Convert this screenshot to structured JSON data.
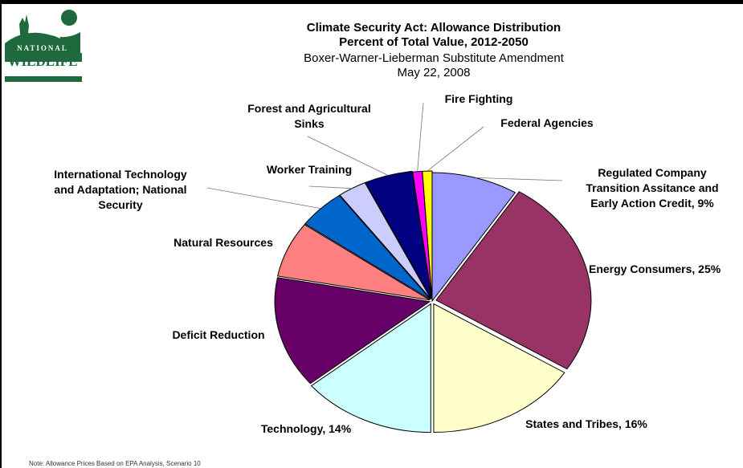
{
  "header": {
    "title_line1": "Climate Security Act:  Allowance Distribution",
    "title_line2": "Percent of Total Value, 2012-2050",
    "subtitle_line1": "Boxer-Warner-Lieberman Substitute Amendment",
    "subtitle_line2": "May 22, 2008"
  },
  "logo": {
    "line1": "NATIONAL",
    "line2": "WILDLIFE",
    "line3": "FEDERATION."
  },
  "note": "Note:  Allowance Prices Based on EPA Analysis,  Scenario 10",
  "colors": {
    "regulated": "#9999ff",
    "energy": "#993366",
    "states": "#ffffcc",
    "technology": "#ccffff",
    "deficit": "#660066",
    "natural": "#ff8080",
    "international": "#0066cc",
    "worker": "#ccccff",
    "forest": "#000080",
    "fire": "#ff00ff",
    "federal": "#ffff00"
  },
  "chart_data": {
    "type": "pie",
    "slices": [
      {
        "label_lines": [
          "Regulated Company",
          "Transition Assitance and",
          "Early Action Credit, 9%"
        ],
        "value": 9,
        "color_key": "regulated"
      },
      {
        "label_lines": [
          "Energy Consumers, 25%"
        ],
        "value": 25,
        "color_key": "energy"
      },
      {
        "label_lines": [
          "States and Tribes, 16%"
        ],
        "value": 16,
        "color_key": "states"
      },
      {
        "label_lines": [
          "Technology, 14%"
        ],
        "value": 14,
        "color_key": "technology"
      },
      {
        "label_lines": [
          "Deficit Reduction"
        ],
        "value": 14,
        "color_key": "deficit"
      },
      {
        "label_lines": [
          "Natural Resources"
        ],
        "value": 7,
        "color_key": "natural"
      },
      {
        "label_lines": [
          "International Technology",
          "and Adaptation; National",
          "Security"
        ],
        "value": 5,
        "color_key": "international"
      },
      {
        "label_lines": [
          "Worker Training"
        ],
        "value": 3,
        "color_key": "worker"
      },
      {
        "label_lines": [
          "Forest and Agricultural",
          "Sinks"
        ],
        "value": 5,
        "color_key": "forest"
      },
      {
        "label_lines": [
          "Fire Fighting"
        ],
        "value": 1,
        "color_key": "fire"
      },
      {
        "label_lines": [
          "Federal Agencies"
        ],
        "value": 1,
        "color_key": "federal"
      }
    ]
  }
}
